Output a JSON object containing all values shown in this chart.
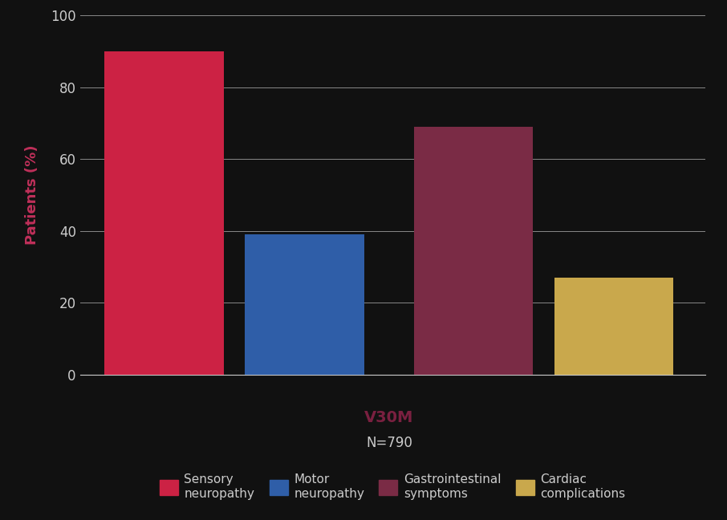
{
  "categories": [
    "Sensory\nneuropathy",
    "Motor\nneuropathy",
    "Gastrointestinal\nsymptoms",
    "Cardiac\ncomplications"
  ],
  "values": [
    90,
    39,
    69,
    27
  ],
  "bar_colors": [
    "#cc2244",
    "#2f5ea8",
    "#7a2b45",
    "#c9a84c"
  ],
  "xlabel_bold": "V30M",
  "xlabel_normal": "N=790",
  "ylabel": "Patients (%)",
  "ylabel_color": "#c0305a",
  "ylim": [
    0,
    100
  ],
  "yticks": [
    0,
    20,
    40,
    60,
    80,
    100
  ],
  "background_color": "#111111",
  "plot_bg_color": "#111111",
  "grid_color": "#888888",
  "tick_label_color": "#cccccc",
  "xlabel_bold_color": "#7a2040",
  "xlabel_normal_color": "#cccccc",
  "legend_labels": [
    "Sensory\nneuropathy",
    "Motor\nneuropathy",
    "Gastrointestinal\nsymptoms",
    "Cardiac\ncomplications"
  ],
  "legend_colors": [
    "#cc2244",
    "#2f5ea8",
    "#7a2b45",
    "#c9a84c"
  ],
  "bar_width": 0.85,
  "bar_positions": [
    1.0,
    2.0,
    3.2,
    4.2
  ],
  "axis_fontsize": 13,
  "tick_fontsize": 12,
  "legend_fontsize": 11
}
